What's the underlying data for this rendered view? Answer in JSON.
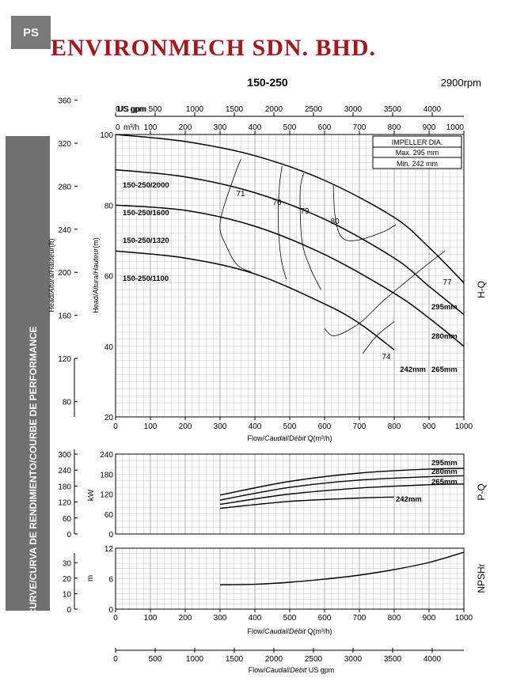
{
  "header": {
    "tab": "PS",
    "company": "ENVIRONMECH SDN. BHD.",
    "model": "150-250",
    "speed": "2900rpm"
  },
  "sidebar": {
    "text": "PERFORMANCE CURVE/CURVA DE RENDIMIENTO/COURBE DE PERFORMANCE"
  },
  "colors": {
    "brand": "#a8151b",
    "sidebar": "#707070",
    "grid": "#b8b8b8",
    "curve": "#000000"
  },
  "chart_data": [
    {
      "type": "line",
      "name": "H-Q",
      "side_label": "H-Q",
      "xlabel_parts": [
        "Flow/",
        "Caudal",
        "/",
        "Débit",
        " Q(m³/h)"
      ],
      "x_ticks": [
        "0",
        "100",
        "200",
        "300",
        "400",
        "500",
        "600",
        "700",
        "800",
        "900",
        "1000"
      ],
      "top_usgpm_label": "US gpm",
      "top_usgpm_ticks": [
        "500",
        "1000",
        "1500",
        "2000",
        "2500",
        "3000",
        "3500",
        "4000"
      ],
      "top_m3h_label": "m³/h",
      "top_m3h_ticks": [
        "100",
        "200",
        "300",
        "400",
        "500",
        "600",
        "700",
        "800",
        "900",
        "1000"
      ],
      "ylabel_m_parts": [
        "Head/",
        "Altura",
        "/",
        "Hauteur",
        "(m)"
      ],
      "ylabel_ft_parts": [
        "Head/",
        "Altura",
        "/",
        "Hauteur",
        "(ft)"
      ],
      "y_ticks_m": [
        "20",
        "40",
        "60",
        "80",
        "100"
      ],
      "y_ticks_ft": [
        "80",
        "120",
        "160",
        "200",
        "240",
        "280",
        "320",
        "360"
      ],
      "xlim": [
        0,
        1000
      ],
      "ylim": [
        20,
        100
      ],
      "impeller": {
        "title": "IMPELLER DIA.",
        "max": "Max.  295 mm",
        "min": "Min.  242 mm"
      },
      "series": [
        {
          "name": "295mm",
          "model": "150-250/2000",
          "x": [
            0,
            200,
            400,
            600,
            800,
            900,
            1000
          ],
          "y": [
            100,
            98,
            94,
            87,
            76.5,
            68,
            58
          ]
        },
        {
          "name": "280mm",
          "model": "150-250/1600",
          "x": [
            0,
            200,
            400,
            600,
            800,
            900,
            1000
          ],
          "y": [
            90,
            88,
            83.5,
            76,
            65,
            57,
            49
          ]
        },
        {
          "name": "265mm",
          "model": "150-250/1320",
          "x": [
            0,
            200,
            400,
            600,
            800,
            900,
            1000
          ],
          "y": [
            80,
            78.5,
            74,
            66,
            55,
            48,
            40
          ]
        },
        {
          "name": "242mm",
          "model": "150-250/1100",
          "x": [
            0,
            200,
            400,
            600,
            700,
            800
          ],
          "y": [
            67,
            65,
            60.5,
            52,
            46.5,
            39
          ]
        }
      ],
      "efficiency": [
        {
          "label": "71",
          "x": [
            360,
            340,
            300,
            320,
            350,
            390
          ],
          "y": [
            93,
            88,
            75,
            68,
            63,
            61
          ]
        },
        {
          "label": "76",
          "x": [
            478,
            470,
            467,
            475,
            490
          ],
          "y": [
            91,
            85,
            75,
            65,
            59
          ]
        },
        {
          "label": "79",
          "x": [
            540,
            530,
            535,
            560,
            590
          ],
          "y": [
            89,
            84,
            70,
            62,
            56
          ]
        },
        {
          "label": "80",
          "x": [
            625,
            630,
            648,
            690,
            770,
            805
          ],
          "y": [
            86,
            77,
            71,
            70,
            72.5,
            74.5
          ]
        },
        {
          "label": "77",
          "x": [
            945,
            880,
            770,
            700,
            630,
            600
          ],
          "y": [
            67,
            62,
            53,
            46.5,
            43,
            45
          ]
        },
        {
          "label": "74",
          "x": [
            800,
            750,
            710
          ],
          "y": [
            47,
            43,
            38
          ]
        }
      ]
    },
    {
      "type": "line",
      "name": "P-Q",
      "side_label": "P-Q",
      "unit": "kW",
      "y_ticks_kw": [
        "0",
        "60",
        "120",
        "180",
        "240"
      ],
      "y_ticks_left": [
        "0",
        "60",
        "120",
        "180",
        "240",
        "300"
      ],
      "xlim": [
        0,
        1000
      ],
      "ylim": [
        0,
        240
      ],
      "series": [
        {
          "name": "295mm",
          "x": [
            300,
            500,
            700,
            900,
            1000
          ],
          "y": [
            117,
            158,
            183,
            195,
            197
          ]
        },
        {
          "name": "280mm",
          "x": [
            300,
            500,
            700,
            900,
            1000
          ],
          "y": [
            102,
            140,
            162,
            172,
            175
          ]
        },
        {
          "name": "265mm",
          "x": [
            300,
            500,
            700,
            900,
            1000
          ],
          "y": [
            89,
            120,
            138,
            148,
            150
          ]
        },
        {
          "name": "242mm",
          "x": [
            300,
            500,
            700,
            800
          ],
          "y": [
            77,
            98,
            108,
            111
          ]
        }
      ]
    },
    {
      "type": "line",
      "name": "NPSHr",
      "side_label": "NPSHr",
      "unit": "m",
      "xlabel_parts": [
        "Flow/",
        "Caudal",
        "/",
        "Débit",
        " Q(m³/h)"
      ],
      "x_ticks": [
        "0",
        "100",
        "200",
        "300",
        "400",
        "500",
        "600",
        "700",
        "800",
        "900",
        "1000"
      ],
      "y_ticks_m": [
        "0",
        "6",
        "12"
      ],
      "y_ticks_ft": [
        "0",
        "10",
        "20",
        "30"
      ],
      "xlim": [
        0,
        1000
      ],
      "ylim": [
        0,
        12
      ],
      "series": [
        {
          "name": "NPSHr",
          "x": [
            300,
            400,
            500,
            600,
            700,
            800,
            900,
            1000
          ],
          "y": [
            4.8,
            4.9,
            5.3,
            5.9,
            6.7,
            7.8,
            9.2,
            11.2
          ]
        }
      ]
    },
    {
      "type": "axis",
      "name": "US gpm scale",
      "xlabel_parts": [
        "Flow/",
        "Caudal",
        "/",
        "Débit",
        " US gpm"
      ],
      "x_ticks": [
        "0",
        "500",
        "1000",
        "1500",
        "2000",
        "2500",
        "3000",
        "3500",
        "4000"
      ]
    }
  ]
}
